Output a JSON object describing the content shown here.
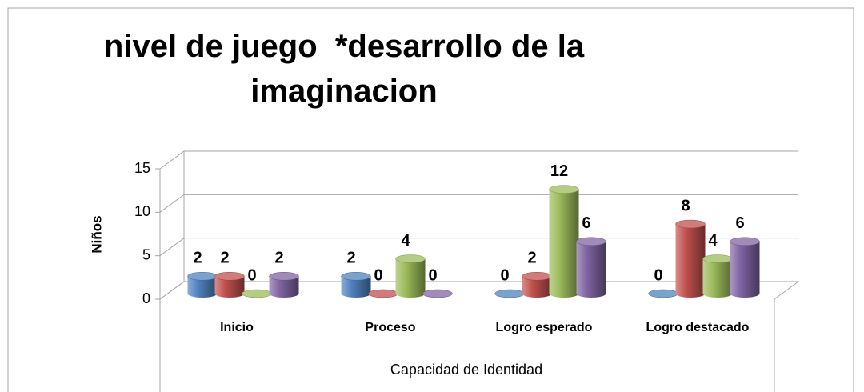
{
  "chart_data": {
    "type": "bar3d",
    "title": "nivel de juego  *desarrollo de la imaginacion",
    "x_label": "Capacidad de Identidad",
    "y_label": "Niños",
    "categories": [
      "Inicio",
      "Proceso",
      "Logro esperado",
      "Logro destacado"
    ],
    "series": [
      {
        "color": "#4f81bd",
        "values": [
          2,
          2,
          0,
          0
        ]
      },
      {
        "color": "#c0504d",
        "values": [
          2,
          0,
          2,
          8
        ]
      },
      {
        "color": "#9bbb59",
        "values": [
          0,
          4,
          12,
          4
        ]
      },
      {
        "color": "#8064a2",
        "values": [
          2,
          0,
          6,
          6
        ]
      }
    ],
    "ylim": [
      0,
      15
    ],
    "yticks": [
      0,
      5,
      10,
      15
    ],
    "grid": true
  }
}
